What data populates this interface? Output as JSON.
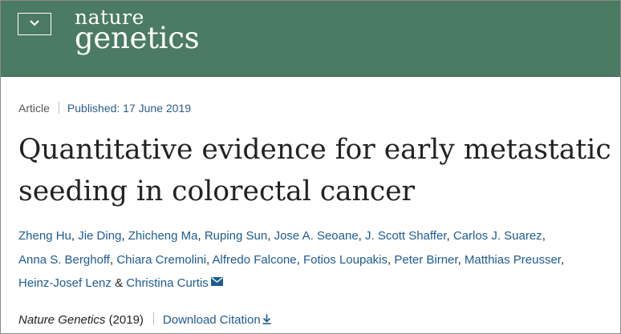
{
  "header": {
    "brand_line1": "nature",
    "brand_line2": "genetics",
    "menu_icon": "chevron-down-icon",
    "color": "#4b7b62"
  },
  "article": {
    "type": "Article",
    "published": "Published: 17 June 2019",
    "title_line1": "Quantitative evidence for early metastatic",
    "title_line2": "seeding in colorectal cancer",
    "authors": [
      "Zheng Hu",
      "Jie Ding",
      "Zhicheng Ma",
      "Ruping Sun",
      "Jose A. Seoane",
      "J. Scott Shaffer",
      "Carlos J. Suarez",
      "Anna S. Berghoff",
      "Chiara Cremolini",
      "Alfredo Falcone",
      "Fotios Loupakis",
      "Peter Birner",
      "Matthias Preusser",
      "Heinz-Josef Lenz",
      "Christina Curtis"
    ],
    "separator": ",",
    "conjunction": "&",
    "journal": "Nature Genetics",
    "year": "(2019)",
    "download_label": "Download Citation",
    "link_color": "#1d5b92"
  }
}
